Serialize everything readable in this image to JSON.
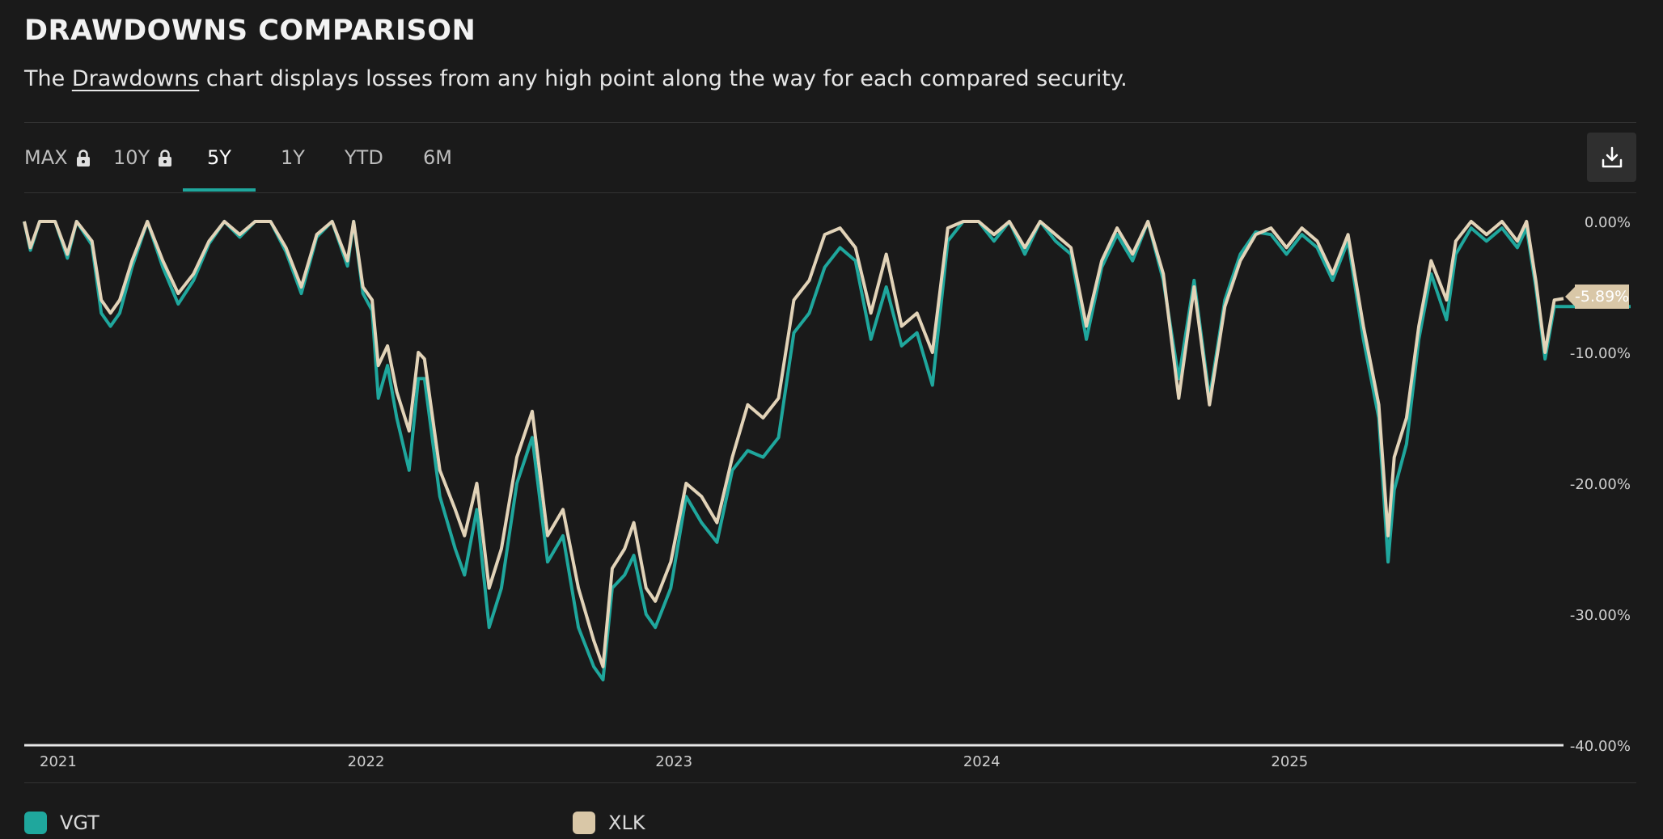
{
  "header": {
    "title": "DRAWDOWNS COMPARISON",
    "subtitle_prefix": "The ",
    "subtitle_link": "Drawdowns",
    "subtitle_suffix": " chart displays losses from any high point along the way for each compared security."
  },
  "tabs": [
    {
      "label": "MAX",
      "locked": true
    },
    {
      "label": "10Y",
      "locked": true
    },
    {
      "label": "5Y",
      "locked": false,
      "active": true
    },
    {
      "label": "1Y",
      "locked": false
    },
    {
      "label": "YTD",
      "locked": false
    },
    {
      "label": "6M",
      "locked": false
    }
  ],
  "download_icon": "download-icon",
  "lock_icon": "lock-icon",
  "colors": {
    "VGT": "#1fa79d",
    "XLK": "#e2d3b8",
    "accent": "#1fa79d",
    "background": "#1a1a1a"
  },
  "current_value_label": "-5.89%",
  "legend": [
    {
      "name": "VGT",
      "color": "#1fa79d"
    },
    {
      "name": "XLK",
      "color": "#d9c7a7"
    }
  ],
  "chart_data": {
    "type": "line",
    "x_unit": "year",
    "xlim": [
      2020.95,
      2025.95
    ],
    "ylim": [
      -40,
      0
    ],
    "y_tick_labels": [
      "0.00%",
      "-10.00%",
      "-20.00%",
      "-30.00%",
      "-40.00%"
    ],
    "y_ticks": [
      0,
      -10,
      -20,
      -30,
      -40
    ],
    "x_tick_labels": [
      "2021",
      "2022",
      "2023",
      "2024",
      "2025"
    ],
    "x_ticks": [
      2021,
      2022,
      2023,
      2024,
      2025
    ],
    "grid": false,
    "legend_position": "bottom-left",
    "series": [
      {
        "name": "XLK",
        "color": "#e2d3b8",
        "points": [
          [
            2020.95,
            0
          ],
          [
            2020.97,
            -2
          ],
          [
            2021.0,
            0
          ],
          [
            2021.05,
            0
          ],
          [
            2021.09,
            -2.5
          ],
          [
            2021.12,
            0
          ],
          [
            2021.17,
            -1.5
          ],
          [
            2021.2,
            -6
          ],
          [
            2021.23,
            -7
          ],
          [
            2021.26,
            -6
          ],
          [
            2021.3,
            -3
          ],
          [
            2021.35,
            0
          ],
          [
            2021.4,
            -3
          ],
          [
            2021.45,
            -5.5
          ],
          [
            2021.5,
            -4
          ],
          [
            2021.55,
            -1.5
          ],
          [
            2021.6,
            0
          ],
          [
            2021.65,
            -1
          ],
          [
            2021.7,
            0
          ],
          [
            2021.75,
            0
          ],
          [
            2021.8,
            -2
          ],
          [
            2021.85,
            -5
          ],
          [
            2021.9,
            -1
          ],
          [
            2021.95,
            0
          ],
          [
            2022.0,
            -3
          ],
          [
            2022.02,
            0
          ],
          [
            2022.05,
            -5
          ],
          [
            2022.08,
            -6
          ],
          [
            2022.1,
            -11
          ],
          [
            2022.13,
            -9.5
          ],
          [
            2022.16,
            -13
          ],
          [
            2022.2,
            -16
          ],
          [
            2022.23,
            -10
          ],
          [
            2022.25,
            -10.5
          ],
          [
            2022.3,
            -19
          ],
          [
            2022.35,
            -22
          ],
          [
            2022.38,
            -24
          ],
          [
            2022.42,
            -20
          ],
          [
            2022.46,
            -28
          ],
          [
            2022.5,
            -25
          ],
          [
            2022.55,
            -18
          ],
          [
            2022.6,
            -14.5
          ],
          [
            2022.65,
            -24
          ],
          [
            2022.7,
            -22
          ],
          [
            2022.75,
            -28
          ],
          [
            2022.8,
            -32
          ],
          [
            2022.83,
            -34
          ],
          [
            2022.86,
            -26.5
          ],
          [
            2022.9,
            -25
          ],
          [
            2022.93,
            -23
          ],
          [
            2022.97,
            -28
          ],
          [
            2023.0,
            -29
          ],
          [
            2023.05,
            -26
          ],
          [
            2023.1,
            -20
          ],
          [
            2023.15,
            -21
          ],
          [
            2023.2,
            -23
          ],
          [
            2023.25,
            -18
          ],
          [
            2023.3,
            -14
          ],
          [
            2023.35,
            -15
          ],
          [
            2023.4,
            -13.5
          ],
          [
            2023.45,
            -6
          ],
          [
            2023.5,
            -4.5
          ],
          [
            2023.55,
            -1
          ],
          [
            2023.6,
            -0.5
          ],
          [
            2023.65,
            -2
          ],
          [
            2023.7,
            -7
          ],
          [
            2023.75,
            -2.5
          ],
          [
            2023.8,
            -8
          ],
          [
            2023.85,
            -7
          ],
          [
            2023.9,
            -10
          ],
          [
            2023.95,
            -0.5
          ],
          [
            2024.0,
            0
          ],
          [
            2024.05,
            0
          ],
          [
            2024.1,
            -1
          ],
          [
            2024.15,
            0
          ],
          [
            2024.2,
            -2
          ],
          [
            2024.25,
            0
          ],
          [
            2024.3,
            -1
          ],
          [
            2024.35,
            -2
          ],
          [
            2024.4,
            -8
          ],
          [
            2024.45,
            -3
          ],
          [
            2024.5,
            -0.5
          ],
          [
            2024.55,
            -2.5
          ],
          [
            2024.6,
            0
          ],
          [
            2024.65,
            -4
          ],
          [
            2024.7,
            -13.5
          ],
          [
            2024.75,
            -5
          ],
          [
            2024.8,
            -14
          ],
          [
            2024.85,
            -6.5
          ],
          [
            2024.9,
            -3
          ],
          [
            2024.95,
            -1
          ],
          [
            2025.0,
            -0.5
          ],
          [
            2025.05,
            -2
          ],
          [
            2025.1,
            -0.5
          ],
          [
            2025.15,
            -1.5
          ],
          [
            2025.2,
            -4
          ],
          [
            2025.25,
            -1
          ],
          [
            2025.3,
            -8
          ],
          [
            2025.35,
            -14
          ],
          [
            2025.38,
            -24
          ],
          [
            2025.4,
            -18
          ],
          [
            2025.44,
            -15
          ],
          [
            2025.48,
            -8
          ],
          [
            2025.52,
            -3
          ],
          [
            2025.57,
            -6
          ],
          [
            2025.6,
            -1.5
          ],
          [
            2025.65,
            0
          ],
          [
            2025.7,
            -1
          ],
          [
            2025.75,
            0
          ],
          [
            2025.8,
            -1.5
          ],
          [
            2025.83,
            0
          ],
          [
            2025.86,
            -4.5
          ],
          [
            2025.89,
            -10
          ],
          [
            2025.92,
            -6
          ],
          [
            2025.95,
            -5.89
          ]
        ]
      },
      {
        "name": "VGT",
        "color": "#1fa79d",
        "points": [
          [
            2020.95,
            0
          ],
          [
            2020.97,
            -2.2
          ],
          [
            2021.0,
            0
          ],
          [
            2021.05,
            0
          ],
          [
            2021.09,
            -2.8
          ],
          [
            2021.12,
            0
          ],
          [
            2021.17,
            -1.8
          ],
          [
            2021.2,
            -7
          ],
          [
            2021.23,
            -8
          ],
          [
            2021.26,
            -7
          ],
          [
            2021.3,
            -3.5
          ],
          [
            2021.35,
            0
          ],
          [
            2021.4,
            -3.5
          ],
          [
            2021.45,
            -6.3
          ],
          [
            2021.5,
            -4.5
          ],
          [
            2021.55,
            -1.7
          ],
          [
            2021.6,
            0
          ],
          [
            2021.65,
            -1.2
          ],
          [
            2021.7,
            0
          ],
          [
            2021.75,
            0
          ],
          [
            2021.8,
            -2.3
          ],
          [
            2021.85,
            -5.5
          ],
          [
            2021.9,
            -1.2
          ],
          [
            2021.95,
            0
          ],
          [
            2022.0,
            -3.4
          ],
          [
            2022.02,
            0
          ],
          [
            2022.05,
            -5.5
          ],
          [
            2022.08,
            -6.8
          ],
          [
            2022.1,
            -13.5
          ],
          [
            2022.13,
            -11
          ],
          [
            2022.16,
            -15
          ],
          [
            2022.2,
            -19
          ],
          [
            2022.23,
            -12
          ],
          [
            2022.25,
            -12
          ],
          [
            2022.3,
            -21
          ],
          [
            2022.35,
            -25
          ],
          [
            2022.38,
            -27
          ],
          [
            2022.42,
            -22
          ],
          [
            2022.46,
            -31
          ],
          [
            2022.5,
            -28
          ],
          [
            2022.55,
            -20
          ],
          [
            2022.6,
            -16.5
          ],
          [
            2022.65,
            -26
          ],
          [
            2022.7,
            -24
          ],
          [
            2022.75,
            -31
          ],
          [
            2022.8,
            -34
          ],
          [
            2022.83,
            -35
          ],
          [
            2022.86,
            -28
          ],
          [
            2022.9,
            -27
          ],
          [
            2022.93,
            -25.5
          ],
          [
            2022.97,
            -30
          ],
          [
            2023.0,
            -31
          ],
          [
            2023.05,
            -28
          ],
          [
            2023.1,
            -21
          ],
          [
            2023.15,
            -23
          ],
          [
            2023.2,
            -24.5
          ],
          [
            2023.25,
            -19
          ],
          [
            2023.3,
            -17.5
          ],
          [
            2023.35,
            -18
          ],
          [
            2023.4,
            -16.5
          ],
          [
            2023.45,
            -8.5
          ],
          [
            2023.5,
            -7
          ],
          [
            2023.55,
            -3.5
          ],
          [
            2023.6,
            -2
          ],
          [
            2023.65,
            -3
          ],
          [
            2023.7,
            -9
          ],
          [
            2023.75,
            -5
          ],
          [
            2023.8,
            -9.5
          ],
          [
            2023.85,
            -8.5
          ],
          [
            2023.9,
            -12.5
          ],
          [
            2023.95,
            -1.5
          ],
          [
            2024.0,
            0
          ],
          [
            2024.05,
            0
          ],
          [
            2024.1,
            -1.5
          ],
          [
            2024.15,
            0
          ],
          [
            2024.2,
            -2.5
          ],
          [
            2024.25,
            0
          ],
          [
            2024.3,
            -1.5
          ],
          [
            2024.35,
            -2.5
          ],
          [
            2024.4,
            -9
          ],
          [
            2024.45,
            -3.5
          ],
          [
            2024.5,
            -1
          ],
          [
            2024.55,
            -3
          ],
          [
            2024.6,
            0
          ],
          [
            2024.65,
            -4.5
          ],
          [
            2024.7,
            -12
          ],
          [
            2024.75,
            -4.5
          ],
          [
            2024.8,
            -13.5
          ],
          [
            2024.85,
            -6
          ],
          [
            2024.9,
            -2.5
          ],
          [
            2024.95,
            -0.8
          ],
          [
            2025.0,
            -1
          ],
          [
            2025.05,
            -2.5
          ],
          [
            2025.1,
            -1
          ],
          [
            2025.15,
            -2
          ],
          [
            2025.2,
            -4.5
          ],
          [
            2025.25,
            -1.5
          ],
          [
            2025.3,
            -9
          ],
          [
            2025.35,
            -15
          ],
          [
            2025.38,
            -26
          ],
          [
            2025.4,
            -20.5
          ],
          [
            2025.44,
            -17
          ],
          [
            2025.48,
            -9
          ],
          [
            2025.52,
            -4
          ],
          [
            2025.57,
            -7.5
          ],
          [
            2025.6,
            -2.5
          ],
          [
            2025.65,
            -0.5
          ],
          [
            2025.7,
            -1.5
          ],
          [
            2025.75,
            -0.5
          ],
          [
            2025.8,
            -2
          ],
          [
            2025.83,
            -0.5
          ],
          [
            2025.86,
            -5
          ],
          [
            2025.89,
            -10.5
          ],
          [
            2025.92,
            -6.5
          ],
          [
            2025.95,
            -6.5
          ]
        ]
      }
    ]
  }
}
